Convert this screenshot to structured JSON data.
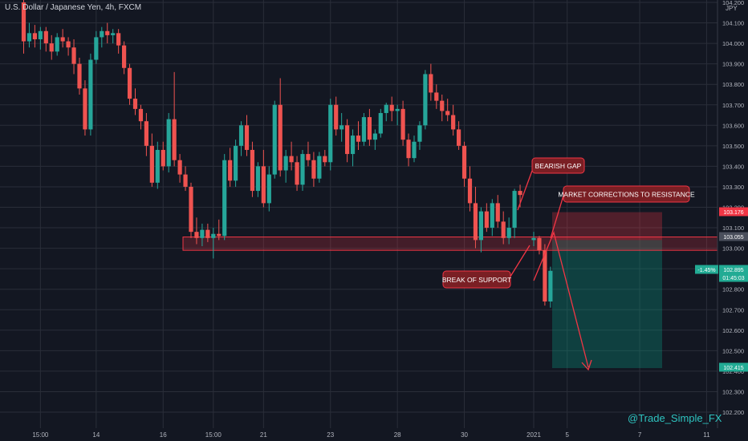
{
  "header": {
    "title": "U.S. Dollar / Japanese Yen, 4h, FXCM",
    "currency": "JPY"
  },
  "watermark": "@Trade_Simple_FX",
  "chart_data": {
    "type": "candlestick",
    "ylim": [
      102.15,
      104.22
    ],
    "y_ticks": [
      104.2,
      104.1,
      104.0,
      103.9,
      103.8,
      103.7,
      103.6,
      103.5,
      103.4,
      103.3,
      103.2,
      103.1,
      103.0,
      102.9,
      102.8,
      102.7,
      102.6,
      102.5,
      102.4,
      102.3,
      102.2
    ],
    "y_tick_labels": [
      "104.200",
      "104.100",
      "104.000",
      "103.900",
      "103.800",
      "103.700",
      "103.600",
      "103.500",
      "103.400",
      "103.300",
      "103.200",
      "103.100",
      "103.000",
      "102.900",
      "102.800",
      "102.700",
      "102.600",
      "102.500",
      "102.400",
      "102.300",
      "102.200"
    ],
    "x_tick_labels": [
      {
        "label": "15:00",
        "bar": 3
      },
      {
        "label": "14",
        "bar": 13
      },
      {
        "label": "16",
        "bar": 25
      },
      {
        "label": "15:00",
        "bar": 34
      },
      {
        "label": "21",
        "bar": 43
      },
      {
        "label": "23",
        "bar": 55
      },
      {
        "label": "28",
        "bar": 67
      },
      {
        "label": "30",
        "bar": 79
      },
      {
        "label": "2021",
        "bar": 90
      },
      {
        "label": "5",
        "bar": 96
      },
      {
        "label": "7",
        "bar": 109
      },
      {
        "label": "11",
        "bar": 121
      }
    ],
    "candles": [
      [
        104.2,
        104.22,
        103.95,
        104.01
      ],
      [
        104.01,
        104.1,
        103.98,
        104.05
      ],
      [
        104.05,
        104.09,
        103.98,
        104.02
      ],
      [
        104.02,
        104.08,
        103.97,
        104.06
      ],
      [
        104.06,
        104.08,
        103.96,
        104.0
      ],
      [
        104.0,
        104.04,
        103.92,
        103.96
      ],
      [
        103.96,
        104.05,
        103.94,
        104.03
      ],
      [
        104.03,
        104.07,
        103.98,
        104.01
      ],
      [
        104.01,
        104.03,
        103.94,
        103.98
      ],
      [
        103.98,
        104.02,
        103.85,
        103.9
      ],
      [
        103.9,
        103.93,
        103.75,
        103.78
      ],
      [
        103.78,
        103.82,
        103.55,
        103.58
      ],
      [
        103.58,
        103.95,
        103.55,
        103.92
      ],
      [
        103.92,
        104.06,
        103.9,
        104.03
      ],
      [
        104.03,
        104.08,
        103.98,
        104.06
      ],
      [
        104.06,
        104.1,
        104.0,
        104.04
      ],
      [
        104.04,
        104.07,
        104.0,
        104.05
      ],
      [
        104.05,
        104.07,
        103.95,
        103.99
      ],
      [
        103.99,
        104.01,
        103.85,
        103.88
      ],
      [
        103.88,
        103.9,
        103.7,
        103.73
      ],
      [
        103.73,
        103.78,
        103.65,
        103.68
      ],
      [
        103.68,
        103.7,
        103.58,
        103.62
      ],
      [
        103.62,
        103.66,
        103.45,
        103.5
      ],
      [
        103.5,
        103.56,
        103.3,
        103.32
      ],
      [
        103.32,
        103.52,
        103.29,
        103.48
      ],
      [
        103.48,
        103.52,
        103.38,
        103.4
      ],
      [
        103.4,
        103.66,
        103.37,
        103.63
      ],
      [
        103.63,
        103.86,
        103.4,
        103.43
      ],
      [
        103.43,
        103.46,
        103.32,
        103.36
      ],
      [
        103.36,
        103.4,
        103.28,
        103.3
      ],
      [
        103.3,
        103.32,
        103.05,
        103.08
      ],
      [
        103.08,
        103.15,
        103.02,
        103.05
      ],
      [
        103.05,
        103.12,
        103.01,
        103.09
      ],
      [
        103.09,
        103.12,
        103.03,
        103.05
      ],
      [
        103.05,
        103.1,
        102.95,
        103.07
      ],
      [
        103.07,
        103.14,
        103.04,
        103.06
      ],
      [
        103.06,
        103.46,
        103.04,
        103.43
      ],
      [
        103.43,
        103.49,
        103.3,
        103.33
      ],
      [
        103.33,
        103.53,
        103.3,
        103.5
      ],
      [
        103.5,
        103.62,
        103.45,
        103.6
      ],
      [
        103.6,
        103.65,
        103.45,
        103.48
      ],
      [
        103.48,
        103.52,
        103.25,
        103.28
      ],
      [
        103.28,
        103.42,
        103.25,
        103.4
      ],
      [
        103.4,
        103.48,
        103.2,
        103.22
      ],
      [
        103.22,
        103.4,
        103.18,
        103.36
      ],
      [
        103.36,
        103.72,
        103.34,
        103.7
      ],
      [
        103.7,
        103.83,
        103.35,
        103.38
      ],
      [
        103.38,
        103.48,
        103.32,
        103.45
      ],
      [
        103.45,
        103.52,
        103.38,
        103.42
      ],
      [
        103.42,
        103.45,
        103.28,
        103.31
      ],
      [
        103.31,
        103.48,
        103.28,
        103.46
      ],
      [
        103.46,
        103.52,
        103.4,
        103.43
      ],
      [
        103.43,
        103.47,
        103.3,
        103.34
      ],
      [
        103.34,
        103.47,
        103.32,
        103.45
      ],
      [
        103.45,
        103.48,
        103.4,
        103.42
      ],
      [
        103.42,
        103.73,
        103.38,
        103.7
      ],
      [
        103.7,
        103.74,
        103.55,
        103.58
      ],
      [
        103.58,
        103.66,
        103.52,
        103.6
      ],
      [
        103.6,
        103.63,
        103.42,
        103.46
      ],
      [
        103.46,
        103.58,
        103.4,
        103.55
      ],
      [
        103.55,
        103.62,
        103.48,
        103.52
      ],
      [
        103.52,
        103.66,
        103.5,
        103.64
      ],
      [
        103.64,
        103.68,
        103.5,
        103.53
      ],
      [
        103.53,
        103.58,
        103.48,
        103.56
      ],
      [
        103.56,
        103.68,
        103.54,
        103.66
      ],
      [
        103.66,
        103.71,
        103.62,
        103.7
      ],
      [
        103.7,
        103.74,
        103.62,
        103.67
      ],
      [
        103.67,
        103.7,
        103.6,
        103.68
      ],
      [
        103.68,
        103.72,
        103.5,
        103.53
      ],
      [
        103.53,
        103.56,
        103.4,
        103.44
      ],
      [
        103.44,
        103.55,
        103.42,
        103.52
      ],
      [
        103.52,
        103.62,
        103.48,
        103.6
      ],
      [
        103.6,
        103.87,
        103.58,
        103.85
      ],
      [
        103.85,
        103.9,
        103.72,
        103.76
      ],
      [
        103.76,
        103.8,
        103.68,
        103.72
      ],
      [
        103.72,
        103.75,
        103.62,
        103.67
      ],
      [
        103.67,
        103.73,
        103.62,
        103.65
      ],
      [
        103.65,
        103.7,
        103.55,
        103.58
      ],
      [
        103.58,
        103.62,
        103.48,
        103.5
      ],
      [
        103.5,
        103.52,
        103.3,
        103.34
      ],
      [
        103.34,
        103.4,
        103.18,
        103.22
      ],
      [
        103.22,
        103.3,
        103.0,
        103.04
      ],
      [
        103.04,
        103.2,
        102.98,
        103.18
      ],
      [
        103.18,
        103.22,
        103.08,
        103.1
      ],
      [
        103.1,
        103.24,
        103.06,
        103.22
      ],
      [
        103.22,
        103.26,
        103.1,
        103.13
      ],
      [
        103.13,
        103.18,
        103.02,
        103.05
      ],
      [
        103.05,
        103.15,
        103.02,
        103.1
      ],
      [
        103.1,
        103.29,
        103.05,
        103.28
      ],
      [
        103.28,
        103.31,
        103.2,
        103.26
      ],
      [
        103.04,
        103.08,
        103.01,
        103.05
      ],
      [
        103.05,
        103.06,
        102.97,
        102.99
      ],
      [
        102.99,
        103.02,
        102.72,
        102.74
      ],
      [
        102.74,
        102.91,
        102.71,
        102.89
      ]
    ],
    "zones": {
      "support_top": 103.055,
      "support_bottom": 102.99,
      "stop_level": 103.176,
      "entry_level": 103.04,
      "target_level": 102.415
    },
    "annotations": [
      {
        "text": "BEARISH GAP"
      },
      {
        "text": "MARKET CORRECTIONS TO RESISTANCE"
      },
      {
        "text": "BREAK OF SUPPORT"
      }
    ],
    "price_labels": [
      {
        "text": "103.176",
        "color": "#f23645"
      },
      {
        "text": "103.055",
        "color": "#4a4f5c"
      },
      {
        "text": "-1.45%",
        "color": "#22ab94"
      },
      {
        "text": "102.895",
        "color": "#22ab94"
      },
      {
        "text": "01:45:03",
        "color": "#22ab94"
      },
      {
        "text": "102.415",
        "color": "#22ab94"
      }
    ],
    "colors": {
      "up": "#26a69a",
      "down": "#ef5350",
      "background": "#131722",
      "grid": "#2a2e39"
    }
  }
}
